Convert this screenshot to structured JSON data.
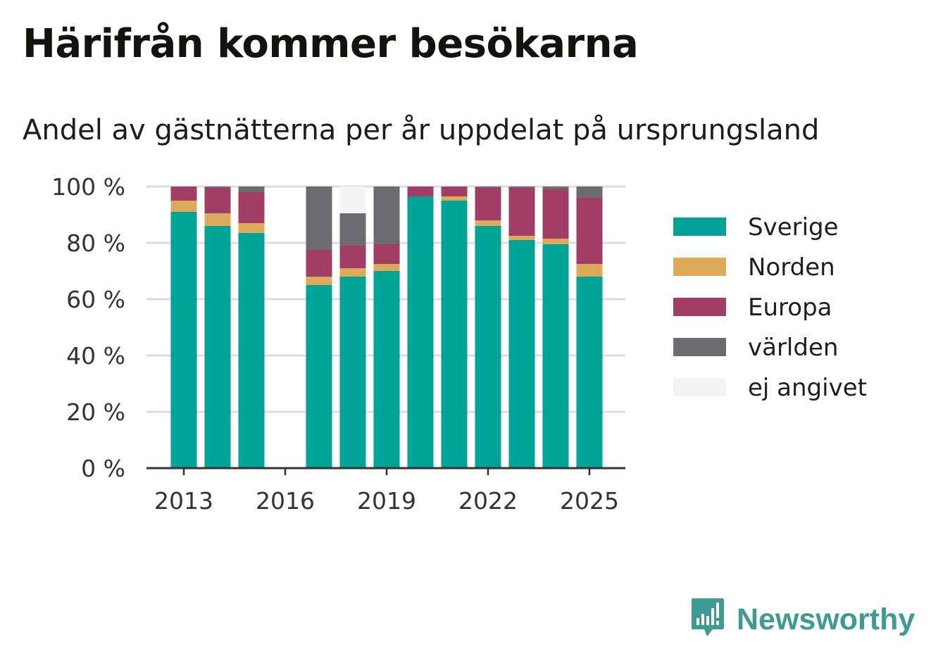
{
  "title": "Härifrån kommer besökarna",
  "subtitle": "Andel av gästnätterna per år uppdelat på ursprungsland",
  "brand": {
    "name": "Newsworthy",
    "icon": "newsworthy-logo-icon",
    "color": "#3f9a93"
  },
  "chart_data": {
    "type": "bar",
    "stacked": true,
    "x": [
      2013,
      2014,
      2015,
      2016,
      2017,
      2018,
      2019,
      2020,
      2021,
      2022,
      2023,
      2024,
      2025
    ],
    "x_ticks": [
      "2013",
      "2016",
      "2019",
      "2022",
      "2025"
    ],
    "y_ticks": [
      "0 %",
      "20 %",
      "40 %",
      "60 %",
      "80 %",
      "100 %"
    ],
    "ylim": [
      0,
      100
    ],
    "unit": "%",
    "grid": true,
    "legend_position": "right",
    "series": [
      {
        "name": "Sverige",
        "color": "#00a398",
        "values": [
          91,
          86,
          83.5,
          null,
          65,
          68,
          70,
          96.5,
          95,
          86,
          81,
          79.5,
          68
        ]
      },
      {
        "name": "Norden",
        "color": "#dcab59",
        "values": [
          4,
          4.5,
          3.5,
          null,
          3,
          3,
          2.5,
          0,
          1.5,
          2,
          1.5,
          2,
          4.5
        ]
      },
      {
        "name": "Europa",
        "color": "#a23e65",
        "values": [
          5,
          9,
          11,
          null,
          9.5,
          8,
          7,
          3.5,
          3.5,
          11.5,
          17,
          17.5,
          23.5
        ]
      },
      {
        "name": "världen",
        "color": "#6b6b70",
        "values": [
          0,
          0.5,
          2,
          null,
          22.5,
          11.5,
          20.5,
          0,
          0,
          0.5,
          0.5,
          1,
          4
        ]
      },
      {
        "name": "ej angivet",
        "color": "#f4f4f2",
        "values": [
          0,
          0,
          0,
          null,
          0,
          9.5,
          0,
          0,
          0,
          0,
          0,
          0,
          0
        ]
      }
    ]
  }
}
